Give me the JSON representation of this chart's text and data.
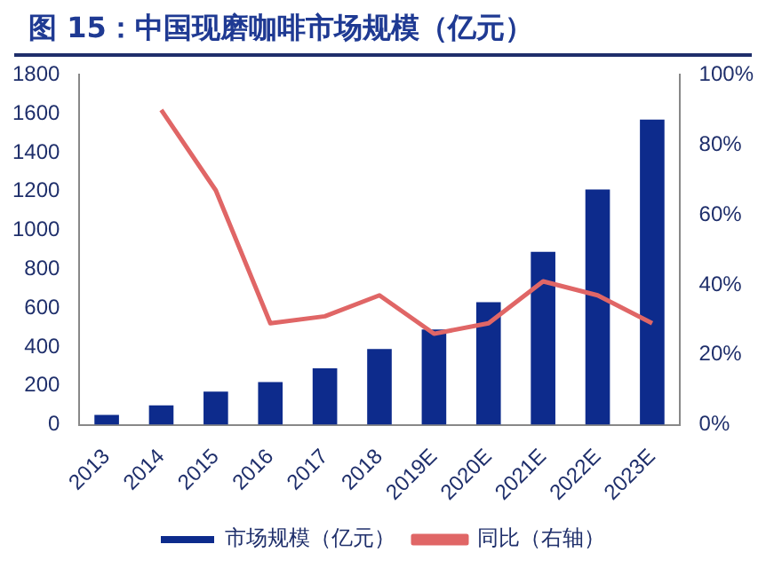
{
  "chart_data": {
    "type": "bar",
    "title": "图 15：中国现磨咖啡市场规模（亿元）",
    "categories": [
      "2013",
      "2014",
      "2015",
      "2016",
      "2017",
      "2018",
      "2019E",
      "2020E",
      "2021E",
      "2022E",
      "2023E"
    ],
    "series": [
      {
        "name": "市场规模（亿元）",
        "color": "#0d2b8c",
        "values": [
          50,
          100,
          170,
          220,
          290,
          390,
          490,
          630,
          890,
          1210,
          1570
        ]
      },
      {
        "name": "同比（右轴）",
        "type": "line",
        "axis": "y2",
        "color": "#e06666",
        "values": [
          null,
          90,
          67,
          29,
          31,
          37,
          26,
          29,
          41,
          37,
          29
        ]
      }
    ],
    "ylim": [
      0,
      1800
    ],
    "yticks": [
      0,
      200,
      400,
      600,
      800,
      1000,
      1200,
      1400,
      1600,
      1800
    ],
    "y2lim": [
      0,
      100
    ],
    "y2ticks": [
      {
        "value": 0,
        "label": "0%"
      },
      {
        "value": 20,
        "label": "20%"
      },
      {
        "value": 40,
        "label": "40%"
      },
      {
        "value": 60,
        "label": "60%"
      },
      {
        "value": 80,
        "label": "80%"
      },
      {
        "value": 100,
        "label": "100%"
      }
    ],
    "grid": false,
    "legend": "bottom",
    "marker": "none"
  }
}
